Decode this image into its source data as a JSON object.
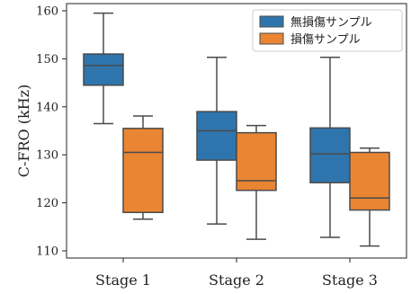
{
  "chart_data": {
    "type": "box",
    "ylabel": "C-FRO (kHz)",
    "xlabel": "",
    "ylim": [
      108.5,
      161.5
    ],
    "yticks": [
      110,
      120,
      130,
      140,
      150,
      160
    ],
    "categories": [
      "Stage 1",
      "Stage 2",
      "Stage 3"
    ],
    "legend_position": "top-right",
    "grid": false,
    "series": [
      {
        "name": "無損傷サンプル",
        "color": "#2f75ad",
        "boxes": [
          {
            "whisker_low": 136.5,
            "q1": 144.5,
            "median": 148.6,
            "q3": 151.0,
            "whisker_high": 159.5
          },
          {
            "whisker_low": 115.6,
            "q1": 128.9,
            "median": 135.0,
            "q3": 139.0,
            "whisker_high": 150.3
          },
          {
            "whisker_low": 112.8,
            "q1": 124.2,
            "median": 130.2,
            "q3": 135.6,
            "whisker_high": 150.3
          }
        ]
      },
      {
        "name": "損傷サンプル",
        "color": "#ea8534",
        "boxes": [
          {
            "whisker_low": 116.6,
            "q1": 118.0,
            "median": 130.5,
            "q3": 135.5,
            "whisker_high": 138.1
          },
          {
            "whisker_low": 112.4,
            "q1": 122.6,
            "median": 124.6,
            "q3": 134.6,
            "whisker_high": 136.1
          },
          {
            "whisker_low": 111.0,
            "q1": 118.5,
            "median": 121.0,
            "q3": 130.5,
            "whisker_high": 131.4
          }
        ]
      }
    ]
  }
}
